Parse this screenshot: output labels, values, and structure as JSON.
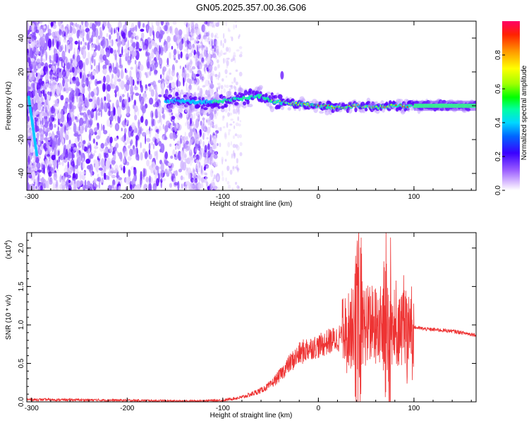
{
  "title": "GN05.2025.357.00.36.G06",
  "colorbar": {
    "label": "Normalized spectral amplitude",
    "ticks": [
      "0.0",
      "0.2",
      "0.4",
      "0.6",
      "0.8"
    ],
    "tick_values": [
      0.0,
      0.2,
      0.4,
      0.6,
      0.8
    ],
    "range": [
      0,
      1
    ]
  },
  "chart_data": [
    {
      "type": "heatmap",
      "xlabel": "Height of straight line (km)",
      "ylabel": "Frequency (Hz)",
      "xlim": [
        -305,
        165
      ],
      "ylim": [
        -50,
        50
      ],
      "xticks": [
        -300,
        -200,
        -100,
        0,
        100
      ],
      "xtick_labels": [
        "-300",
        "-200",
        "-100",
        "0",
        "100"
      ],
      "yticks": [
        -40,
        -20,
        0,
        20,
        40
      ],
      "ytick_labels": [
        "-40",
        "-20",
        "0",
        "20",
        "40"
      ],
      "colormap": "rainbow-white",
      "ridge_frequency": [
        [
          -150,
          3
        ],
        [
          -120,
          2
        ],
        [
          -100,
          3
        ],
        [
          -80,
          4
        ],
        [
          -60,
          6
        ],
        [
          -50,
          3
        ],
        [
          -40,
          2
        ],
        [
          -20,
          1
        ],
        [
          0,
          0
        ],
        [
          20,
          -1
        ],
        [
          40,
          0
        ],
        [
          60,
          -1
        ],
        [
          80,
          0
        ],
        [
          100,
          0
        ],
        [
          120,
          0
        ],
        [
          160,
          0
        ]
      ]
    },
    {
      "type": "line",
      "xlabel": "Height of straight line (km)",
      "ylabel": "SNR (10 * v/v)",
      "multiplier_label": "(x10",
      "multiplier_exponent": "4",
      "xlim": [
        -305,
        165
      ],
      "ylim": [
        0.0,
        2.2
      ],
      "xticks": [
        -300,
        -200,
        -100,
        0,
        100
      ],
      "xtick_labels": [
        "-300",
        "-200",
        "-100",
        "0",
        "100"
      ],
      "yticks": [
        0.0,
        0.5,
        1.0,
        1.5,
        2.0
      ],
      "ytick_labels": [
        "0.0",
        "0.5",
        "1.0",
        "1.5",
        "2.0"
      ],
      "series_color": "#ee3333",
      "envelope": [
        [
          -305,
          0.03
        ],
        [
          -200,
          0.02
        ],
        [
          -140,
          0.01
        ],
        [
          -100,
          0.02
        ],
        [
          -80,
          0.06
        ],
        [
          -70,
          0.1
        ],
        [
          -60,
          0.15
        ],
        [
          -50,
          0.22
        ],
        [
          -40,
          0.35
        ],
        [
          -30,
          0.5
        ],
        [
          -20,
          0.62
        ],
        [
          -10,
          0.7
        ],
        [
          0,
          0.72
        ],
        [
          10,
          0.78
        ],
        [
          20,
          0.82
        ],
        [
          30,
          0.92
        ],
        [
          40,
          1.0
        ],
        [
          50,
          1.0
        ],
        [
          60,
          0.98
        ],
        [
          70,
          1.0
        ],
        [
          80,
          0.98
        ],
        [
          90,
          0.96
        ],
        [
          100,
          0.97
        ],
        [
          110,
          0.95
        ],
        [
          120,
          0.94
        ],
        [
          140,
          0.92
        ],
        [
          165,
          0.87
        ]
      ]
    }
  ]
}
